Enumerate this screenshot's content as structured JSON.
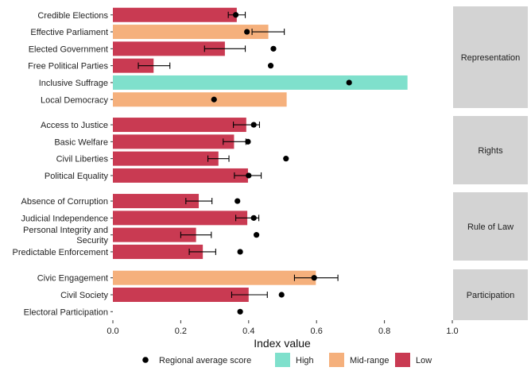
{
  "chart_data": {
    "type": "bar",
    "orientation": "horizontal",
    "xlabel": "Index value",
    "xlim": [
      0,
      1
    ],
    "x_ticks": [
      0.0,
      0.2,
      0.4,
      0.6,
      0.8,
      1.0
    ],
    "x_tick_labels": [
      "0.0",
      "0.2",
      "0.4",
      "0.6",
      "0.8",
      "1.0"
    ],
    "grid": false,
    "legend_position": "bottom",
    "legend": {
      "point_label": "Regional average score",
      "fill_items": [
        {
          "key": "High",
          "label": "High",
          "color": "#7fe0cc"
        },
        {
          "key": "Mid-range",
          "label": "Mid-range",
          "color": "#f5b07c"
        },
        {
          "key": "Low",
          "label": "Low",
          "color": "#c93a52"
        }
      ]
    },
    "colors": {
      "High": "#7fe0cc",
      "Mid-range": "#f5b07c",
      "Low": "#c93a52",
      "panel_strip": "#d3d3d3",
      "point": "#000000"
    },
    "panels": [
      {
        "name": "Representation",
        "rows": [
          {
            "label": "Credible Elections",
            "value": 0.365,
            "category": "Low",
            "regional_average": 0.362,
            "ci": [
              0.34,
              0.39
            ]
          },
          {
            "label": "Effective Parliament",
            "value": 0.458,
            "category": "Mid-range",
            "regional_average": 0.395,
            "ci": [
              0.41,
              0.505
            ]
          },
          {
            "label": "Elected Government",
            "value": 0.33,
            "category": "Low",
            "regional_average": 0.473,
            "ci": [
              0.27,
              0.39
            ]
          },
          {
            "label": "Free Political Parties",
            "value": 0.12,
            "category": "Low",
            "regional_average": 0.465,
            "ci": [
              0.075,
              0.168
            ]
          },
          {
            "label": "Inclusive Suffrage",
            "value": 0.868,
            "category": "High",
            "regional_average": 0.696,
            "ci": null
          },
          {
            "label": "Local Democracy",
            "value": 0.512,
            "category": "Mid-range",
            "regional_average": 0.298,
            "ci": null
          }
        ]
      },
      {
        "name": "Rights",
        "rows": [
          {
            "label": "Access to Justice",
            "value": 0.393,
            "category": "Low",
            "regional_average": 0.415,
            "ci": [
              0.355,
              0.432
            ]
          },
          {
            "label": "Basic Welfare",
            "value": 0.357,
            "category": "Low",
            "regional_average": 0.398,
            "ci": [
              0.325,
              0.392
            ]
          },
          {
            "label": "Civil Liberties",
            "value": 0.311,
            "category": "Low",
            "regional_average": 0.51,
            "ci": [
              0.28,
              0.342
            ]
          },
          {
            "label": "Political Equality",
            "value": 0.398,
            "category": "Low",
            "regional_average": 0.4,
            "ci": [
              0.358,
              0.437
            ]
          }
        ]
      },
      {
        "name": "Rule of Law",
        "rows": [
          {
            "label": "Absence of Corruption",
            "value": 0.253,
            "category": "Low",
            "regional_average": 0.367,
            "ci": [
              0.215,
              0.292
            ]
          },
          {
            "label": "Judicial Independence",
            "value": 0.396,
            "category": "Low",
            "regional_average": 0.415,
            "ci": [
              0.362,
              0.43
            ]
          },
          {
            "label": "Personal Integrity and\nSecurity",
            "value": 0.245,
            "category": "Low",
            "regional_average": 0.423,
            "ci": [
              0.2,
              0.29
            ]
          },
          {
            "label": "Predictable Enforcement",
            "value": 0.265,
            "category": "Low",
            "regional_average": 0.375,
            "ci": [
              0.225,
              0.303
            ]
          }
        ]
      },
      {
        "name": "Participation",
        "rows": [
          {
            "label": "Civic Engagement",
            "value": 0.598,
            "category": "Mid-range",
            "regional_average": 0.593,
            "ci": [
              0.535,
              0.663
            ]
          },
          {
            "label": "Civil Society",
            "value": 0.4,
            "category": "Low",
            "regional_average": 0.497,
            "ci": [
              0.35,
              0.455
            ]
          },
          {
            "label": "Electoral Participation",
            "value": 0.0,
            "category": "Low",
            "regional_average": 0.375,
            "ci": null
          }
        ]
      }
    ]
  }
}
